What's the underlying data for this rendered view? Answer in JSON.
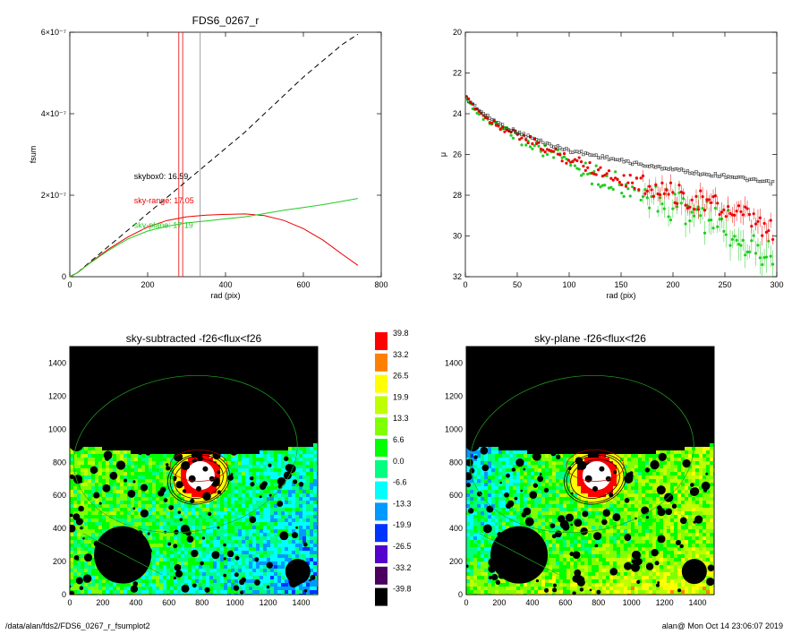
{
  "footer": {
    "path": "/data/alan/fds2/FDS6_0267_r_fsumplot2",
    "user_time": "alan@  Mon Oct 14 23:06:07 2019"
  },
  "colors": {
    "red": "#ee0000",
    "green": "#22cc22",
    "black": "#000000",
    "gray": "#888888"
  },
  "chart_data": [
    {
      "type": "line",
      "title": "FDS6_0267_r",
      "xlabel": "rad (pix)",
      "ylabel": "fsum",
      "xlim": [
        0,
        800
      ],
      "ylim": [
        0,
        6e-07
      ],
      "x_ticks": [
        0,
        200,
        400,
        600,
        800
      ],
      "y_ticks": [
        0,
        2e-07,
        4e-07,
        6e-07
      ],
      "y_tick_labels": [
        "0",
        "2×10⁻⁷",
        "4×10⁻⁷",
        "6×10⁻⁷"
      ],
      "vlines": [
        {
          "x": 280,
          "color": "red"
        },
        {
          "x": 290,
          "color": "red"
        },
        {
          "x": 335,
          "color": "gray"
        }
      ],
      "annotations": [
        {
          "text": "skybox0: 16.59",
          "x": 165,
          "y": 2.4e-07,
          "color": "black"
        },
        {
          "text": "sky-range: 17.05",
          "x": 165,
          "y": 1.8e-07,
          "color": "red"
        },
        {
          "text": "sky-plane: 17.19",
          "x": 165,
          "y": 1.2e-07,
          "color": "green"
        }
      ],
      "series": [
        {
          "style": "dashed",
          "color": "black",
          "x": [
            0,
            20,
            50,
            100,
            150,
            200,
            250,
            300,
            350,
            400,
            450,
            500,
            550,
            600,
            650,
            700,
            740
          ],
          "y": [
            0,
            1e-08,
            3.5e-08,
            7.5e-08,
            1.15e-07,
            1.55e-07,
            1.95e-07,
            2.35e-07,
            2.75e-07,
            3.15e-07,
            3.55e-07,
            4e-07,
            4.45e-07,
            4.9e-07,
            5.3e-07,
            5.7e-07,
            5.95e-07
          ]
        },
        {
          "style": "solid",
          "color": "red",
          "x": [
            0,
            20,
            50,
            100,
            150,
            200,
            250,
            300,
            350,
            400,
            450,
            500,
            550,
            600,
            650,
            700,
            740
          ],
          "y": [
            0,
            1e-08,
            3.3e-08,
            6.8e-08,
            9.8e-08,
            1.22e-07,
            1.38e-07,
            1.47e-07,
            1.51e-07,
            1.53e-07,
            1.54e-07,
            1.5e-07,
            1.38e-07,
            1.18e-07,
            9e-08,
            5.5e-08,
            2.8e-08
          ]
        },
        {
          "style": "solid",
          "color": "green",
          "x": [
            0,
            20,
            50,
            100,
            150,
            200,
            250,
            300,
            350,
            400,
            450,
            500,
            550,
            600,
            650,
            700,
            740
          ],
          "y": [
            0,
            1e-08,
            3.2e-08,
            6.5e-08,
            9.3e-08,
            1.12e-07,
            1.24e-07,
            1.32e-07,
            1.37e-07,
            1.42e-07,
            1.47e-07,
            1.55e-07,
            1.63e-07,
            1.7e-07,
            1.77e-07,
            1.85e-07,
            1.92e-07
          ]
        }
      ]
    },
    {
      "type": "scatter",
      "title": "",
      "xlabel": "rad (pix)",
      "ylabel": "μ",
      "xlim": [
        0,
        300
      ],
      "ylim": [
        32,
        20
      ],
      "x_ticks": [
        0,
        50,
        100,
        150,
        200,
        250,
        300
      ],
      "y_ticks": [
        20,
        22,
        24,
        26,
        28,
        30,
        32
      ],
      "series": [
        {
          "color": "black",
          "marker": "square",
          "x": [
            2,
            20,
            40,
            60,
            80,
            100,
            120,
            140,
            160,
            180,
            200,
            220,
            240,
            260,
            280,
            298
          ],
          "y": [
            23.3,
            24.1,
            24.7,
            25.1,
            25.5,
            25.8,
            26.0,
            26.2,
            26.4,
            26.6,
            26.7,
            26.9,
            27.0,
            27.1,
            27.3,
            27.4
          ]
        },
        {
          "color": "red",
          "marker": "dot",
          "x": [
            2,
            20,
            40,
            60,
            80,
            100,
            120,
            140,
            160,
            180,
            200,
            220,
            240,
            260,
            280,
            298
          ],
          "y": [
            23.3,
            24.2,
            24.8,
            25.3,
            25.8,
            26.2,
            26.6,
            27.0,
            27.3,
            27.6,
            27.9,
            28.2,
            28.5,
            28.9,
            29.4,
            30.0
          ]
        },
        {
          "color": "green",
          "marker": "dot",
          "x": [
            2,
            20,
            40,
            60,
            80,
            100,
            120,
            140,
            160,
            180,
            200,
            220,
            240,
            260,
            280,
            298
          ],
          "y": [
            23.4,
            24.3,
            24.9,
            25.4,
            25.9,
            26.4,
            26.9,
            27.3,
            27.7,
            28.1,
            28.5,
            28.9,
            29.3,
            29.8,
            30.3,
            30.8
          ]
        }
      ]
    },
    {
      "type": "heatmap",
      "title": "sky-subtracted -f26<flux<f26",
      "xlim": [
        0,
        1500
      ],
      "ylim": [
        0,
        1500
      ],
      "x_ticks": [
        0,
        200,
        400,
        600,
        800,
        1000,
        1200,
        1400
      ],
      "y_ticks": [
        0,
        200,
        400,
        600,
        800,
        1000,
        1200,
        1400
      ],
      "field_bias": "sky-subtracted"
    },
    {
      "type": "heatmap",
      "title": "sky-plane -f26<flux<f26",
      "xlim": [
        0,
        1500
      ],
      "ylim": [
        0,
        1500
      ],
      "x_ticks": [
        0,
        200,
        400,
        600,
        800,
        1000,
        1200,
        1400
      ],
      "y_ticks": [
        0,
        200,
        400,
        600,
        800,
        1000,
        1200,
        1400
      ],
      "field_bias": "sky-plane"
    }
  ],
  "colorbar": {
    "labels": [
      "39.8",
      "33.2",
      "26.5",
      "19.9",
      "13.3",
      "6.6",
      "0.0",
      "-6.6",
      "-13.3",
      "-19.9",
      "-26.5",
      "-33.2",
      "-39.8"
    ],
    "colors": [
      "#ff0000",
      "#ff8000",
      "#ffff00",
      "#bfff00",
      "#80ff00",
      "#00ff00",
      "#00ff80",
      "#00ffff",
      "#0099ff",
      "#0033ff",
      "#5500cc",
      "#4b0060",
      "#000000"
    ]
  }
}
